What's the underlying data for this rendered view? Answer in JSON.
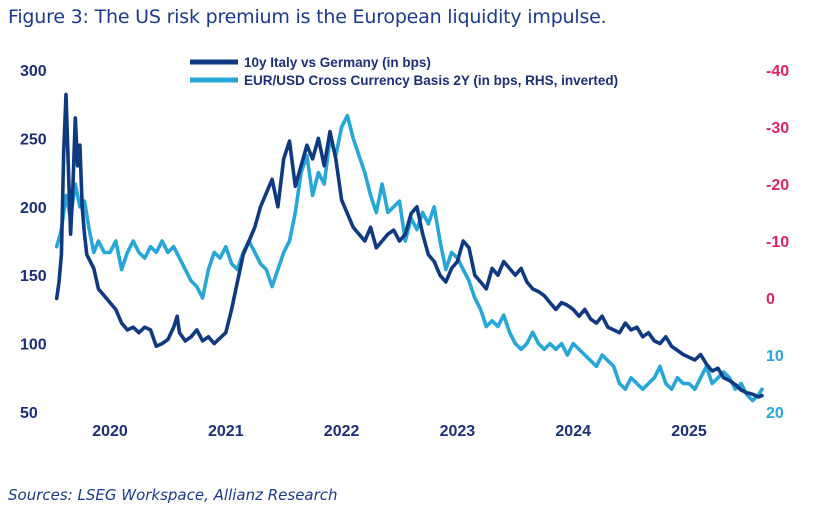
{
  "title": "Figure 3: The US risk premium is the European liquidity impulse.",
  "source": "Sources: LSEG Workspace,  Allianz Research",
  "chart_data": {
    "type": "line",
    "title": "Figure 3: The US risk premium is the European liquidity impulse.",
    "x_ticks": [
      "2020",
      "2021",
      "2022",
      "2023",
      "2024",
      "2025"
    ],
    "y_left": {
      "ticks": [
        300,
        250,
        200,
        150,
        100,
        50
      ],
      "range": [
        50,
        300
      ]
    },
    "y_right": {
      "ticks": [
        "-40",
        "-30",
        "-20",
        "-10",
        "0",
        "10",
        "20"
      ],
      "range": [
        -40,
        20
      ],
      "inverted": true,
      "color": "#e0245e"
    },
    "legend_position": "top-center",
    "series": [
      {
        "name": "10y Italy vs Germany (in bps)",
        "axis": "left",
        "color": "#0f3a82",
        "x": [
          2019.54,
          2019.56,
          2019.58,
          2019.6,
          2019.62,
          2019.64,
          2019.66,
          2019.68,
          2019.7,
          2019.72,
          2019.74,
          2019.76,
          2019.78,
          2019.8,
          2019.83,
          2019.86,
          2019.9,
          2019.95,
          2020.0,
          2020.05,
          2020.1,
          2020.15,
          2020.2,
          2020.25,
          2020.3,
          2020.35,
          2020.4,
          2020.45,
          2020.5,
          2020.55,
          2020.58,
          2020.6,
          2020.65,
          2020.7,
          2020.75,
          2020.8,
          2020.85,
          2020.9,
          2020.95,
          2021.0,
          2021.05,
          2021.1,
          2021.15,
          2021.2,
          2021.25,
          2021.3,
          2021.35,
          2021.4,
          2021.45,
          2021.5,
          2021.55,
          2021.6,
          2021.65,
          2021.7,
          2021.75,
          2021.8,
          2021.85,
          2021.9,
          2021.95,
          2022.0,
          2022.05,
          2022.1,
          2022.15,
          2022.2,
          2022.25,
          2022.3,
          2022.35,
          2022.4,
          2022.45,
          2022.5,
          2022.55,
          2022.6,
          2022.65,
          2022.7,
          2022.75,
          2022.8,
          2022.85,
          2022.9,
          2022.95,
          2023.0,
          2023.05,
          2023.1,
          2023.15,
          2023.2,
          2023.25,
          2023.3,
          2023.35,
          2023.4,
          2023.45,
          2023.5,
          2023.55,
          2023.6,
          2023.65,
          2023.7,
          2023.75,
          2023.8,
          2023.85,
          2023.9,
          2023.95,
          2024.0,
          2024.05,
          2024.1,
          2024.15,
          2024.2,
          2024.25,
          2024.3,
          2024.35,
          2024.4,
          2024.45,
          2024.5,
          2024.55,
          2024.6,
          2024.65,
          2024.7,
          2024.75,
          2024.8,
          2024.85,
          2024.9,
          2024.95,
          2025.0,
          2025.05,
          2025.1,
          2025.15,
          2025.2,
          2025.25,
          2025.3,
          2025.35,
          2025.4,
          2025.45,
          2025.5,
          2025.55,
          2025.6,
          2025.63
        ],
        "values": [
          133,
          145,
          165,
          240,
          282,
          230,
          180,
          215,
          265,
          230,
          245,
          200,
          180,
          165,
          160,
          155,
          140,
          135,
          130,
          125,
          115,
          110,
          112,
          108,
          112,
          110,
          98,
          100,
          103,
          112,
          120,
          108,
          102,
          105,
          110,
          102,
          105,
          100,
          104,
          108,
          125,
          145,
          165,
          175,
          185,
          200,
          210,
          220,
          200,
          235,
          248,
          215,
          230,
          245,
          235,
          250,
          230,
          255,
          235,
          205,
          195,
          185,
          180,
          175,
          185,
          170,
          175,
          180,
          183,
          175,
          180,
          195,
          200,
          180,
          165,
          160,
          150,
          145,
          155,
          160,
          175,
          170,
          150,
          145,
          140,
          155,
          150,
          160,
          155,
          150,
          155,
          145,
          140,
          138,
          135,
          130,
          125,
          130,
          128,
          125,
          120,
          125,
          118,
          115,
          120,
          112,
          110,
          108,
          115,
          110,
          112,
          105,
          108,
          102,
          100,
          105,
          98,
          95,
          92,
          90,
          88,
          92,
          85,
          80,
          82,
          75,
          73,
          70,
          66,
          64,
          63,
          61,
          62
        ],
        "note": "approximate"
      },
      {
        "name": "EUR/USD Cross Currency Basis 2Y (in bps, RHS, inverted)",
        "axis": "right",
        "color": "#27a7d8",
        "x": [
          2019.54,
          2019.58,
          2019.62,
          2019.66,
          2019.7,
          2019.74,
          2019.78,
          2019.82,
          2019.86,
          2019.9,
          2019.95,
          2020.0,
          2020.05,
          2020.1,
          2020.15,
          2020.2,
          2020.25,
          2020.3,
          2020.35,
          2020.4,
          2020.45,
          2020.5,
          2020.55,
          2020.6,
          2020.65,
          2020.7,
          2020.75,
          2020.8,
          2020.85,
          2020.9,
          2020.95,
          2021.0,
          2021.05,
          2021.1,
          2021.15,
          2021.2,
          2021.25,
          2021.3,
          2021.35,
          2021.4,
          2021.45,
          2021.5,
          2021.55,
          2021.6,
          2021.65,
          2021.7,
          2021.75,
          2021.8,
          2021.85,
          2021.9,
          2021.95,
          2022.0,
          2022.05,
          2022.1,
          2022.15,
          2022.2,
          2022.25,
          2022.3,
          2022.35,
          2022.4,
          2022.45,
          2022.5,
          2022.55,
          2022.6,
          2022.65,
          2022.7,
          2022.75,
          2022.8,
          2022.85,
          2022.9,
          2022.95,
          2023.0,
          2023.05,
          2023.1,
          2023.15,
          2023.2,
          2023.25,
          2023.3,
          2023.35,
          2023.4,
          2023.45,
          2023.5,
          2023.55,
          2023.6,
          2023.65,
          2023.7,
          2023.75,
          2023.8,
          2023.85,
          2023.9,
          2023.95,
          2024.0,
          2024.05,
          2024.1,
          2024.15,
          2024.2,
          2024.25,
          2024.3,
          2024.35,
          2024.4,
          2024.45,
          2024.5,
          2024.55,
          2024.6,
          2024.65,
          2024.7,
          2024.75,
          2024.8,
          2024.85,
          2024.9,
          2024.95,
          2025.0,
          2025.05,
          2025.1,
          2025.15,
          2025.2,
          2025.25,
          2025.3,
          2025.35,
          2025.4,
          2025.45,
          2025.5,
          2025.55,
          2025.6,
          2025.63
        ],
        "values": [
          -9,
          -12,
          -18,
          -14,
          -20,
          -16,
          -17,
          -12,
          -8,
          -10,
          -8,
          -8,
          -10,
          -5,
          -8,
          -10,
          -8,
          -7,
          -9,
          -8,
          -10,
          -8,
          -9,
          -7,
          -5,
          -3,
          -2,
          0,
          -5,
          -8,
          -7,
          -9,
          -6,
          -5,
          -8,
          -10,
          -8,
          -6,
          -5,
          -2,
          -5,
          -8,
          -10,
          -15,
          -22,
          -25,
          -18,
          -22,
          -20,
          -28,
          -25,
          -30,
          -32,
          -28,
          -25,
          -22,
          -18,
          -15,
          -20,
          -15,
          -16,
          -17,
          -10,
          -14,
          -12,
          -15,
          -13,
          -16,
          -10,
          -5,
          -8,
          -7,
          -5,
          -3,
          0,
          2,
          5,
          4,
          5,
          3,
          6,
          8,
          9,
          8,
          6,
          8,
          9,
          8,
          9,
          8,
          10,
          8,
          9,
          10,
          11,
          12,
          10,
          11,
          12,
          15,
          16,
          14,
          15,
          16,
          15,
          14,
          12,
          15,
          16,
          14,
          15,
          15,
          16,
          14,
          12,
          15,
          14,
          13,
          14,
          16,
          15,
          17,
          18,
          17,
          16
        ],
        "note": "approximate"
      }
    ]
  }
}
